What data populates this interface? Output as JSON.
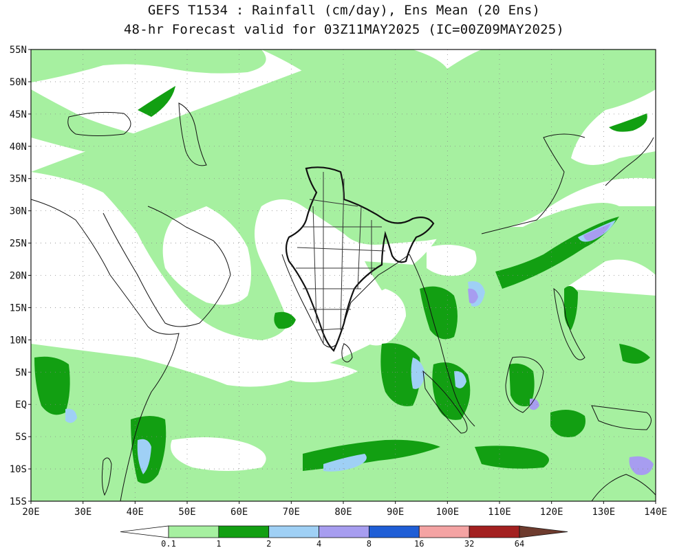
{
  "header": {
    "title_line1": "GEFS T1534 : Rainfall (cm/day), Ens Mean (20 Ens)",
    "title_line2": "48-hr Forecast valid for 03Z11MAY2025 (IC=00Z09MAY2025)"
  },
  "map": {
    "lon_range": [
      20,
      140
    ],
    "lat_range": [
      -15,
      55
    ],
    "lat_ticks": [
      {
        "value": 55,
        "label": "55N"
      },
      {
        "value": 50,
        "label": "50N"
      },
      {
        "value": 45,
        "label": "45N"
      },
      {
        "value": 40,
        "label": "40N"
      },
      {
        "value": 35,
        "label": "35N"
      },
      {
        "value": 30,
        "label": "30N"
      },
      {
        "value": 25,
        "label": "25N"
      },
      {
        "value": 20,
        "label": "20N"
      },
      {
        "value": 15,
        "label": "15N"
      },
      {
        "value": 10,
        "label": "10N"
      },
      {
        "value": 5,
        "label": "5N"
      },
      {
        "value": 0,
        "label": "EQ"
      },
      {
        "value": -5,
        "label": "5S"
      },
      {
        "value": -10,
        "label": "10S"
      },
      {
        "value": -15,
        "label": "15S"
      }
    ],
    "lon_ticks": [
      {
        "value": 20,
        "label": "20E"
      },
      {
        "value": 30,
        "label": "30E"
      },
      {
        "value": 40,
        "label": "40E"
      },
      {
        "value": 50,
        "label": "50E"
      },
      {
        "value": 60,
        "label": "60E"
      },
      {
        "value": 70,
        "label": "70E"
      },
      {
        "value": 80,
        "label": "80E"
      },
      {
        "value": 90,
        "label": "90E"
      },
      {
        "value": 100,
        "label": "100E"
      },
      {
        "value": 110,
        "label": "110E"
      },
      {
        "value": 120,
        "label": "120E"
      },
      {
        "value": 130,
        "label": "130E"
      },
      {
        "value": 140,
        "label": "140E"
      }
    ],
    "grid": true,
    "colors": {
      "lt0.1": "#ffffff",
      "c1": "#a6f0a0",
      "c2": "#129f12",
      "c3": "#9fd0f5",
      "c4": "#a79df0",
      "c5": "#1f5ed6",
      "c6": "#f4a3a3",
      "c7": "#a32020",
      "c8": "#6e3b2e"
    }
  },
  "colorbar": {
    "thresholds": [
      "0.1",
      "1",
      "2",
      "4",
      "8",
      "16",
      "32",
      "64"
    ],
    "colors": [
      "#ffffff",
      "#a6f0a0",
      "#129f12",
      "#9fd0f5",
      "#a79df0",
      "#1f5ed6",
      "#f4a3a3",
      "#a32020",
      "#6e3b2e"
    ]
  }
}
